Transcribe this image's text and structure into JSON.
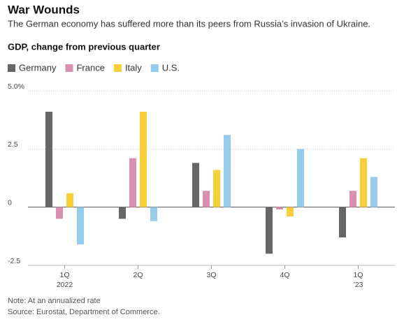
{
  "chart_data": {
    "type": "bar",
    "title": "War Wounds",
    "subtitle": "The German economy has suffered more than its peers from Russia’s invasion of Ukraine.",
    "y_axis_label": "GDP, change from previous quarter",
    "categories": [
      "1Q",
      "2Q",
      "3Q",
      "4Q",
      "1Q"
    ],
    "category_sublabels": [
      "2022",
      null,
      null,
      null,
      "’23"
    ],
    "series": [
      {
        "name": "Germany",
        "color": "#666666",
        "values": [
          4.1,
          -0.5,
          1.9,
          -2.0,
          -1.3
        ]
      },
      {
        "name": "France",
        "color": "#d98fb0",
        "values": [
          -0.5,
          2.1,
          0.7,
          -0.1,
          0.7
        ]
      },
      {
        "name": "Italy",
        "color": "#f9d03c",
        "values": [
          0.6,
          4.1,
          1.6,
          -0.4,
          2.1
        ]
      },
      {
        "name": "U.S.",
        "color": "#95cceb",
        "values": [
          -1.6,
          -0.6,
          3.1,
          2.5,
          1.3
        ]
      }
    ],
    "ylim": [
      -2.5,
      5
    ],
    "yticks": [
      {
        "value": 5,
        "label": "5.0%"
      },
      2.5,
      0,
      -2.5
    ],
    "grid": true,
    "notes": [
      "Note: At an annualized rate",
      "Source: Eurostat, Department of Commerce."
    ]
  }
}
